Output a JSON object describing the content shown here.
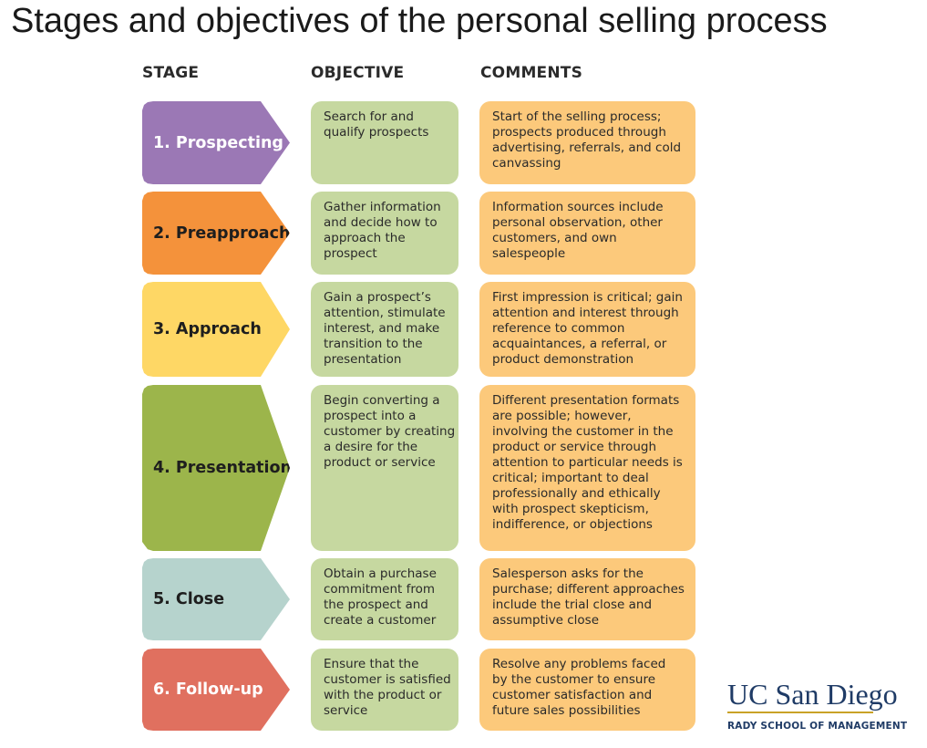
{
  "title": "Stages and objectives of the personal selling process",
  "headers": {
    "stage": "STAGE",
    "objective": "OBJECTIVE",
    "comments": "COMMENTS"
  },
  "rows": [
    {
      "stage": "1. Prospecting",
      "objective": "Search for and\nqualify prospects",
      "comment": "Start of the selling process;\nprospects produced through\nadvertising, referrals, and cold\ncanvassing",
      "color": "#9b78b5",
      "text_color": "#ffffff"
    },
    {
      "stage": "2. Preapproach",
      "objective": "Gather information\nand decide how to\napproach the\nprospect",
      "comment": "Information sources include\npersonal observation, other\ncustomers, and own\nsalespeople",
      "color": "#f4923b",
      "text_color": "#1e1e1e"
    },
    {
      "stage": "3. Approach",
      "objective": "Gain a prospect’s\nattention, stimulate\ninterest, and make\ntransition to the\npresentation",
      "comment": "First impression is critical; gain\nattention and interest through\nreference to common\nacquaintances, a referral, or\nproduct demonstration",
      "color": "#fed765",
      "text_color": "#1e1e1e"
    },
    {
      "stage": "4. Presentation",
      "objective": "Begin converting a\nprospect into a\ncustomer by creating\na desire for the\nproduct or service",
      "comment": "Different presentation formats\nare possible; however,\ninvolving the customer in the\nproduct or service through\nattention to particular needs is\ncritical; important to deal\nprofessionally and ethically\nwith prospect skepticism,\nindifference, or objections",
      "color": "#9cb54b",
      "text_color": "#1e1e1e"
    },
    {
      "stage": "5. Close",
      "objective": "Obtain a purchase\ncommitment from\nthe prospect and\ncreate a customer",
      "comment": "Salesperson asks for the\npurchase; different approaches\ninclude the trial close and\nassumptive close",
      "color": "#b6d3cd",
      "text_color": "#1e1e1e"
    },
    {
      "stage": "6. Follow-up",
      "objective": "Ensure that the\ncustomer is satisfied\nwith the product or\nservice",
      "comment": "Resolve any problems faced\nby the customer to ensure\ncustomer satisfaction and\nfuture sales possibilities",
      "color": "#e0705f",
      "text_color": "#ffffff"
    }
  ],
  "logo": {
    "main": "UC San Diego",
    "sub": "RADY SCHOOL OF MANAGEMENT"
  }
}
